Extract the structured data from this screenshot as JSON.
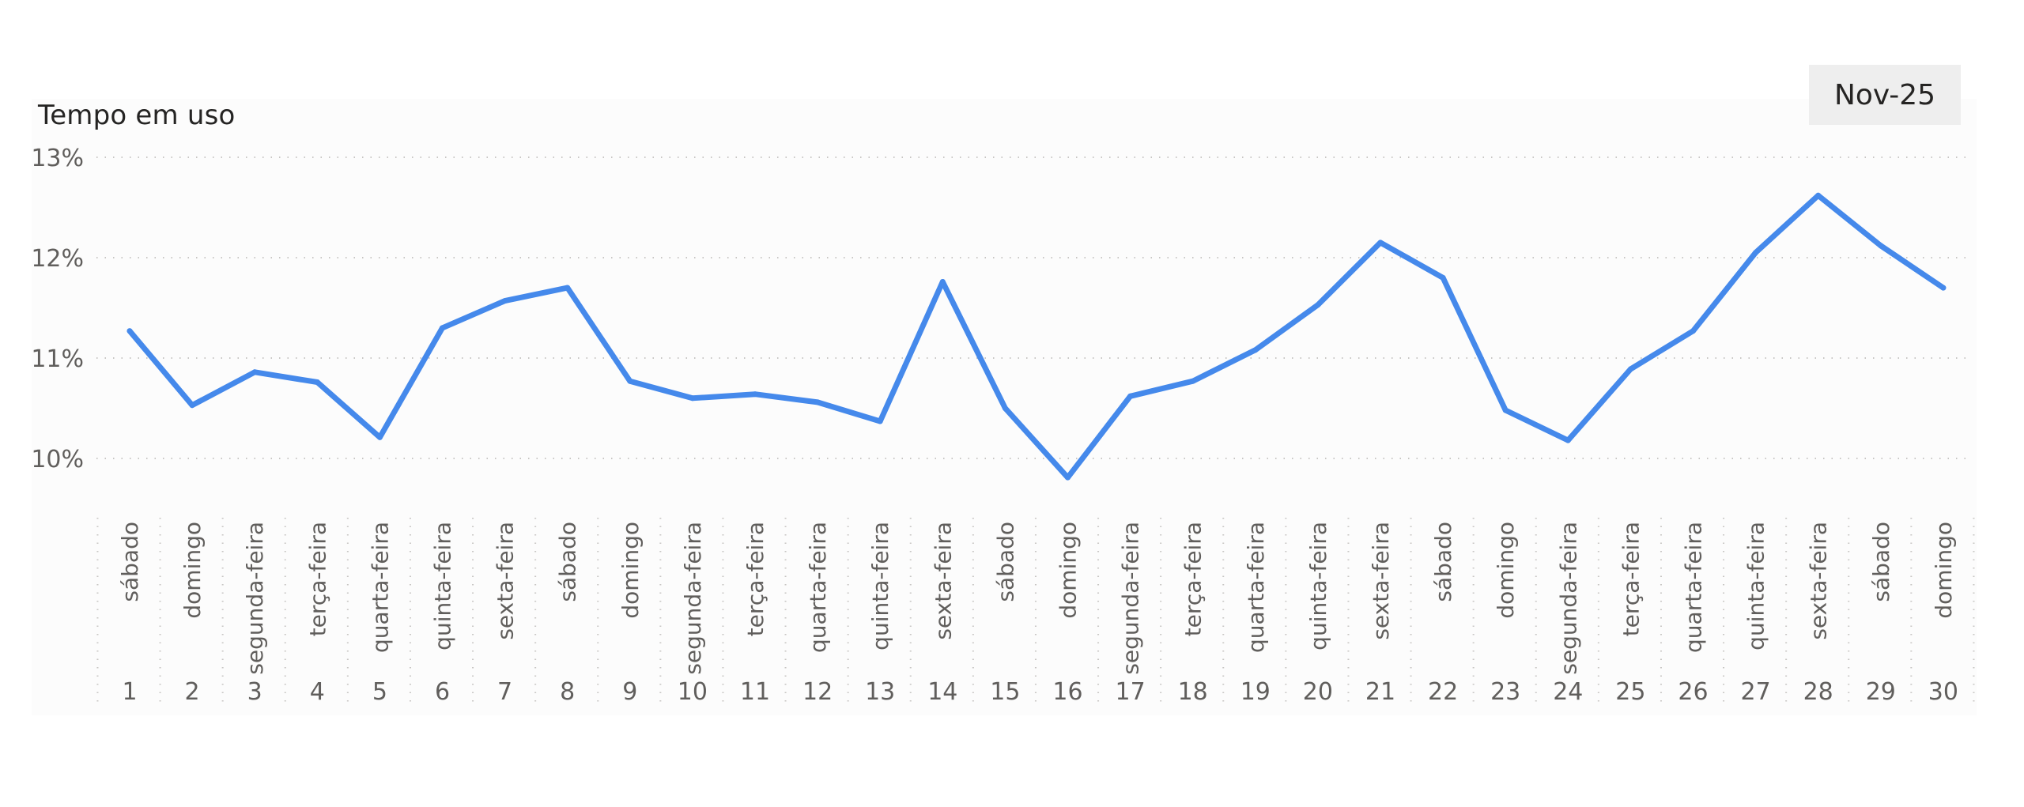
{
  "period_selector": {
    "label": "Nov-25"
  },
  "colors": {
    "line": "#4589EB",
    "grid": "#c8c6c4",
    "text": "#605e5c",
    "title": "#252423",
    "panel": "#fcfcfc",
    "button_bg": "#eeeeee"
  },
  "chart_data": {
    "type": "line",
    "title": "Tempo em uso",
    "y_tick_labels": [
      "10%",
      "11%",
      "12%",
      "13%"
    ],
    "y_ticks": [
      10,
      11,
      12,
      13
    ],
    "ylim": [
      9.5,
      13
    ],
    "grid": true,
    "x": [
      1,
      2,
      3,
      4,
      5,
      6,
      7,
      8,
      9,
      10,
      11,
      12,
      13,
      14,
      15,
      16,
      17,
      18,
      19,
      20,
      21,
      22,
      23,
      24,
      25,
      26,
      27,
      28,
      29,
      30
    ],
    "x_weekdays": [
      "sábado",
      "domingo",
      "segunda-feira",
      "terça-feira",
      "quarta-feira",
      "quinta-feira",
      "sexta-feira",
      "sábado",
      "domingo",
      "segunda-feira",
      "terça-feira",
      "quarta-feira",
      "quinta-feira",
      "sexta-feira",
      "sábado",
      "domingo",
      "segunda-feira",
      "terça-feira",
      "quarta-feira",
      "quinta-feira",
      "sexta-feira",
      "sábado",
      "domingo",
      "segunda-feira",
      "terça-feira",
      "quarta-feira",
      "quinta-feira",
      "sexta-feira",
      "sábado",
      "domingo"
    ],
    "values": [
      11.27,
      10.53,
      10.86,
      10.76,
      10.21,
      11.3,
      11.57,
      11.7,
      10.77,
      10.6,
      10.64,
      10.56,
      10.37,
      11.76,
      10.5,
      9.81,
      10.62,
      10.77,
      11.08,
      11.53,
      12.15,
      11.8,
      10.48,
      10.18,
      10.89,
      11.27,
      12.05,
      12.62,
      12.12,
      11.7
    ]
  }
}
